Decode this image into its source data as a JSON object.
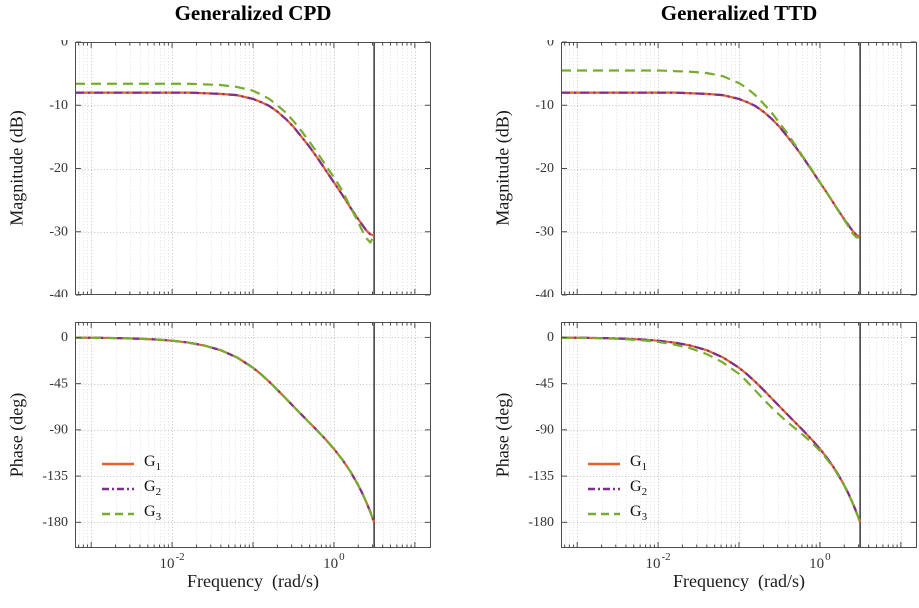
{
  "figure": {
    "background": "#ffffff",
    "columns": [
      {
        "title": "Generalized CPD",
        "xlabel": "Frequency  (rad/s)"
      },
      {
        "title": "Generalized TTD",
        "xlabel": "Frequency  (rad/s)"
      }
    ],
    "ylabel_magnitude": "Magnitude (dB)",
    "ylabel_phase": "Phase (deg)"
  },
  "legend": {
    "items": [
      {
        "label": "G",
        "sub": "1",
        "color": "#e2622a",
        "dash": "solid"
      },
      {
        "label": "G",
        "sub": "2",
        "color": "#7e2f8e",
        "dash": "dashdot"
      },
      {
        "label": "G",
        "sub": "3",
        "color": "#77ac30",
        "dash": "dashed"
      }
    ]
  },
  "style": {
    "axis_color": "#4d4d4d",
    "tick_label_color": "#333333",
    "grid_major_color": "#c3c3c3",
    "grid_minor_color": "#e1e1e1",
    "nyquist_line_color": "#2b2b2b",
    "series_width": 2.2
  },
  "chart_data": [
    {
      "id": "cpd-magnitude",
      "type": "line",
      "title": "Generalized CPD",
      "ylabel": "Magnitude (dB)",
      "xscale": "log10",
      "xlim_log10": [
        -3.2,
        1.2
      ],
      "ylim": [
        -40,
        0
      ],
      "yticks": [
        0,
        -10,
        -20,
        -30,
        -40
      ],
      "xticks": [
        {
          "log10": -2,
          "base": "10",
          "exp": "-2"
        },
        {
          "log10": 0,
          "base": "10",
          "exp": "0"
        }
      ],
      "show_xtick_labels": false,
      "vline_log10": 0.497,
      "x_log10": [
        -3.2,
        -3,
        -2.8,
        -2.6,
        -2.4,
        -2.2,
        -2,
        -1.8,
        -1.6,
        -1.4,
        -1.2,
        -1,
        -0.9,
        -0.8,
        -0.7,
        -0.6,
        -0.5,
        -0.4,
        -0.3,
        -0.2,
        -0.1,
        0,
        0.1,
        0.2,
        0.3,
        0.35,
        0.4,
        0.45,
        0.497
      ],
      "series": [
        {
          "name": "G_1",
          "color": "#e2622a",
          "dash": "solid",
          "y": [
            -8,
            -8,
            -8,
            -8,
            -8,
            -8,
            -8,
            -8,
            -8.1,
            -8.2,
            -8.4,
            -9,
            -9.5,
            -10.1,
            -11,
            -12.1,
            -13.4,
            -15,
            -16.6,
            -18.4,
            -20.3,
            -22.2,
            -24.1,
            -26.1,
            -28,
            -28.9,
            -29.8,
            -30.4,
            -30.6
          ]
        },
        {
          "name": "G_2",
          "color": "#7e2f8e",
          "dash": "dashdot",
          "y": [
            -8,
            -8,
            -8,
            -8,
            -8,
            -8,
            -8,
            -8,
            -8.1,
            -8.2,
            -8.4,
            -9,
            -9.5,
            -10.1,
            -11,
            -12.1,
            -13.4,
            -15,
            -16.6,
            -18.4,
            -20.3,
            -22.2,
            -24.1,
            -26.1,
            -28,
            -28.9,
            -29.8,
            -30.4,
            -30.6
          ]
        },
        {
          "name": "G_3",
          "color": "#77ac30",
          "dash": "dashed",
          "y": [
            -6.6,
            -6.6,
            -6.6,
            -6.6,
            -6.6,
            -6.6,
            -6.6,
            -6.6,
            -6.7,
            -6.8,
            -7.1,
            -7.7,
            -8.3,
            -9,
            -10,
            -11.1,
            -12.5,
            -14.1,
            -15.8,
            -17.6,
            -19.5,
            -21.4,
            -23.4,
            -26,
            -28.5,
            -29.8,
            -31,
            -31.7,
            -30.6
          ]
        }
      ]
    },
    {
      "id": "ttd-magnitude",
      "type": "line",
      "title": "Generalized TTD",
      "ylabel": "Magnitude (dB)",
      "xscale": "log10",
      "xlim_log10": [
        -3.2,
        1.2
      ],
      "ylim": [
        -40,
        0
      ],
      "yticks": [
        0,
        -10,
        -20,
        -30,
        -40
      ],
      "xticks": [
        {
          "log10": -2,
          "base": "10",
          "exp": "-2"
        },
        {
          "log10": 0,
          "base": "10",
          "exp": "0"
        }
      ],
      "show_xtick_labels": false,
      "vline_log10": 0.497,
      "x_log10": [
        -3.2,
        -3,
        -2.8,
        -2.6,
        -2.4,
        -2.2,
        -2,
        -1.8,
        -1.6,
        -1.4,
        -1.2,
        -1,
        -0.9,
        -0.8,
        -0.7,
        -0.6,
        -0.5,
        -0.4,
        -0.3,
        -0.2,
        -0.1,
        0,
        0.1,
        0.2,
        0.3,
        0.35,
        0.4,
        0.45,
        0.497
      ],
      "series": [
        {
          "name": "G_1",
          "color": "#e2622a",
          "dash": "solid",
          "y": [
            -8,
            -8,
            -8,
            -8,
            -8,
            -8,
            -8,
            -8,
            -8.1,
            -8.2,
            -8.4,
            -9,
            -9.5,
            -10.1,
            -11,
            -12.1,
            -13.4,
            -15,
            -16.6,
            -18.4,
            -20.3,
            -22.2,
            -24.1,
            -26.1,
            -28,
            -28.9,
            -29.8,
            -30.5,
            -30.8
          ]
        },
        {
          "name": "G_2",
          "color": "#7e2f8e",
          "dash": "dashdot",
          "y": [
            -8,
            -8,
            -8,
            -8,
            -8,
            -8,
            -8,
            -8,
            -8.1,
            -8.2,
            -8.4,
            -9,
            -9.5,
            -10.1,
            -11,
            -12.1,
            -13.4,
            -15,
            -16.6,
            -18.4,
            -20.3,
            -22.2,
            -24.1,
            -26.1,
            -28,
            -28.9,
            -29.8,
            -30.5,
            -30.8
          ]
        },
        {
          "name": "G_3",
          "color": "#77ac30",
          "dash": "dashed",
          "y": [
            -4.5,
            -4.5,
            -4.5,
            -4.5,
            -4.5,
            -4.5,
            -4.5,
            -4.6,
            -4.7,
            -4.9,
            -5.4,
            -6.5,
            -7.3,
            -8.4,
            -9.7,
            -11.1,
            -12.8,
            -14.5,
            -16.4,
            -18.3,
            -20.2,
            -22.2,
            -24.1,
            -26.1,
            -28.1,
            -29.1,
            -30.2,
            -30.9,
            -30.9
          ]
        }
      ]
    },
    {
      "id": "cpd-phase",
      "type": "line",
      "title": "Generalized CPD",
      "ylabel": "Phase (deg)",
      "xlabel": "Frequency  (rad/s)",
      "xscale": "log10",
      "xlim_log10": [
        -3.2,
        1.2
      ],
      "ylim": [
        -205,
        15
      ],
      "yticks": [
        0,
        -45,
        -90,
        -135,
        -180
      ],
      "xticks": [
        {
          "log10": -2,
          "base": "10",
          "exp": "-2"
        },
        {
          "log10": 0,
          "base": "10",
          "exp": "0"
        }
      ],
      "show_xtick_labels": true,
      "vline_log10": 0.497,
      "x_log10": [
        -3.2,
        -3,
        -2.8,
        -2.6,
        -2.4,
        -2.2,
        -2,
        -1.8,
        -1.6,
        -1.4,
        -1.2,
        -1,
        -0.9,
        -0.8,
        -0.7,
        -0.6,
        -0.5,
        -0.4,
        -0.3,
        -0.2,
        -0.1,
        0,
        0.1,
        0.2,
        0.3,
        0.35,
        0.4,
        0.45,
        0.497
      ],
      "series": [
        {
          "name": "G_1",
          "color": "#e2622a",
          "dash": "solid",
          "y": [
            -0.2,
            -0.3,
            -0.5,
            -0.8,
            -1.3,
            -2,
            -3.2,
            -5,
            -7.9,
            -12.4,
            -19.4,
            -29.5,
            -35.9,
            -43.1,
            -50.9,
            -59,
            -67.1,
            -75.2,
            -83.2,
            -91.2,
            -99.5,
            -108.5,
            -118.5,
            -130,
            -143.8,
            -151.6,
            -160.3,
            -169.9,
            -180
          ]
        },
        {
          "name": "G_2",
          "color": "#7e2f8e",
          "dash": "dashdot",
          "y": [
            -0.2,
            -0.3,
            -0.5,
            -0.8,
            -1.3,
            -2,
            -3.2,
            -5,
            -7.9,
            -12.4,
            -19.4,
            -29.5,
            -35.9,
            -43.1,
            -50.9,
            -59,
            -67.1,
            -75.2,
            -83.2,
            -91.2,
            -99.5,
            -108.5,
            -118.5,
            -130,
            -143.8,
            -151.6,
            -160.3,
            -169.9,
            -180
          ]
        },
        {
          "name": "G_3",
          "color": "#77ac30",
          "dash": "dashed",
          "y": [
            -0.2,
            -0.3,
            -0.5,
            -0.8,
            -1.3,
            -2,
            -3.2,
            -5,
            -7.9,
            -12.4,
            -19.4,
            -29.5,
            -35.9,
            -43.1,
            -50.9,
            -59,
            -67.1,
            -75.2,
            -83.2,
            -91.2,
            -99.5,
            -108.5,
            -118.5,
            -130,
            -143.8,
            -151.6,
            -160.3,
            -169.9,
            -180
          ]
        }
      ]
    },
    {
      "id": "ttd-phase",
      "type": "line",
      "title": "Generalized TTD",
      "ylabel": "Phase (deg)",
      "xlabel": "Frequency  (rad/s)",
      "xscale": "log10",
      "xlim_log10": [
        -3.2,
        1.2
      ],
      "ylim": [
        -205,
        15
      ],
      "yticks": [
        0,
        -45,
        -90,
        -135,
        -180
      ],
      "xticks": [
        {
          "log10": -2,
          "base": "10",
          "exp": "-2"
        },
        {
          "log10": 0,
          "base": "10",
          "exp": "0"
        }
      ],
      "show_xtick_labels": true,
      "vline_log10": 0.497,
      "x_log10": [
        -3.2,
        -3,
        -2.8,
        -2.6,
        -2.4,
        -2.2,
        -2,
        -1.8,
        -1.6,
        -1.4,
        -1.2,
        -1,
        -0.9,
        -0.8,
        -0.7,
        -0.6,
        -0.5,
        -0.4,
        -0.3,
        -0.2,
        -0.1,
        0,
        0.1,
        0.2,
        0.3,
        0.35,
        0.4,
        0.45,
        0.497
      ],
      "series": [
        {
          "name": "G_1",
          "color": "#e2622a",
          "dash": "solid",
          "y": [
            -0.2,
            -0.3,
            -0.5,
            -0.8,
            -1.3,
            -2,
            -3.2,
            -5,
            -7.9,
            -12.4,
            -19.4,
            -29.5,
            -35.9,
            -43.1,
            -50.9,
            -59,
            -67.1,
            -75.2,
            -83.2,
            -91.2,
            -99.5,
            -108.5,
            -118.5,
            -130,
            -143.8,
            -151.6,
            -160.3,
            -169.9,
            -180
          ]
        },
        {
          "name": "G_2",
          "color": "#7e2f8e",
          "dash": "dashdot",
          "y": [
            -0.2,
            -0.3,
            -0.5,
            -0.8,
            -1.3,
            -2,
            -3.2,
            -5,
            -7.9,
            -12.4,
            -19.4,
            -29.5,
            -35.9,
            -43.1,
            -50.9,
            -59,
            -67.1,
            -75.2,
            -83.2,
            -91.2,
            -99.5,
            -108.5,
            -118.5,
            -130,
            -143.8,
            -151.6,
            -160.3,
            -169.9,
            -180
          ]
        },
        {
          "name": "G_3",
          "color": "#77ac30",
          "dash": "dashed",
          "y": [
            -0.3,
            -0.4,
            -0.7,
            -1.1,
            -1.8,
            -2.8,
            -4.4,
            -6.9,
            -10.6,
            -16.2,
            -24.3,
            -35.5,
            -43,
            -51.5,
            -60,
            -68,
            -75.5,
            -82.5,
            -89,
            -95.5,
            -102.5,
            -110.3,
            -119.8,
            -130.8,
            -144.2,
            -151.9,
            -160.5,
            -170,
            -180
          ]
        }
      ]
    }
  ]
}
